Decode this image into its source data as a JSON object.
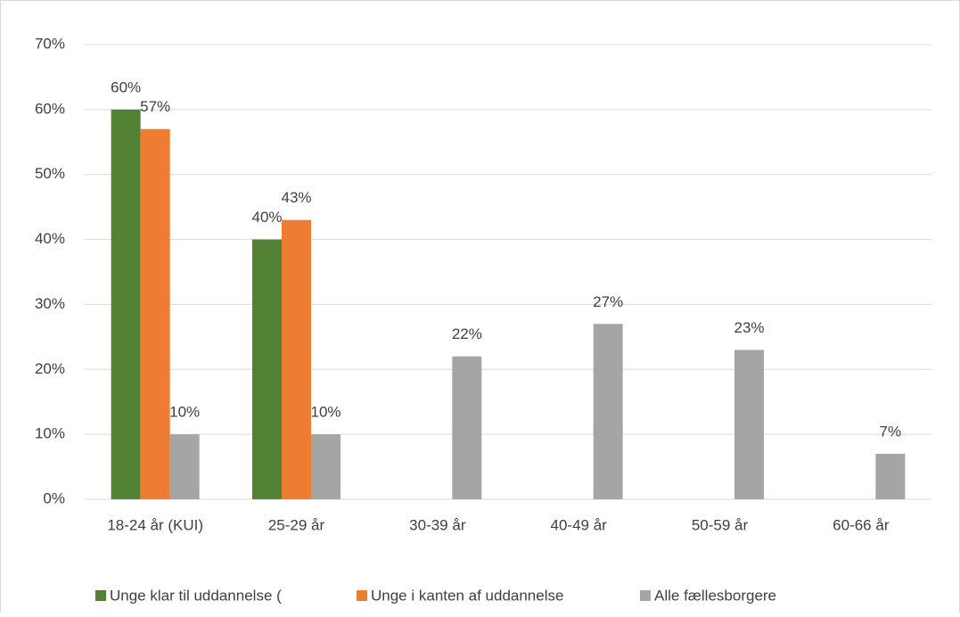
{
  "chart_data": {
    "type": "bar",
    "categories": [
      "18-24 år (KUI)",
      "25-29 år",
      "30-39 år",
      "40-49 år",
      "50-59 år",
      "60-66 år"
    ],
    "series": [
      {
        "name": "Unge klar til uddannelse (",
        "color": "#548235",
        "values": [
          60,
          40,
          null,
          null,
          null,
          null
        ],
        "value_labels": [
          "60%",
          "40%",
          null,
          null,
          null,
          null
        ]
      },
      {
        "name": "Unge i kanten af uddannelse",
        "color": "#ed7d31",
        "values": [
          57,
          43,
          null,
          null,
          null,
          null
        ],
        "value_labels": [
          "57%",
          "43%",
          null,
          null,
          null,
          null
        ]
      },
      {
        "name": "Alle fællesborgere",
        "color": "#a5a5a5",
        "values": [
          10,
          10,
          22,
          27,
          23,
          7
        ],
        "value_labels": [
          "10%",
          "10%",
          "22%",
          "27%",
          "23%",
          "7%"
        ]
      }
    ],
    "ylim": [
      0,
      70
    ],
    "yticks": [
      {
        "value": 0,
        "label": "0%"
      },
      {
        "value": 10,
        "label": "10%"
      },
      {
        "value": 20,
        "label": "20%"
      },
      {
        "value": 30,
        "label": "30%"
      },
      {
        "value": 40,
        "label": "40%"
      },
      {
        "value": 50,
        "label": "50%"
      },
      {
        "value": 60,
        "label": "60%"
      },
      {
        "value": 70,
        "label": "70%"
      }
    ],
    "grid": true,
    "legend": "bottom"
  }
}
